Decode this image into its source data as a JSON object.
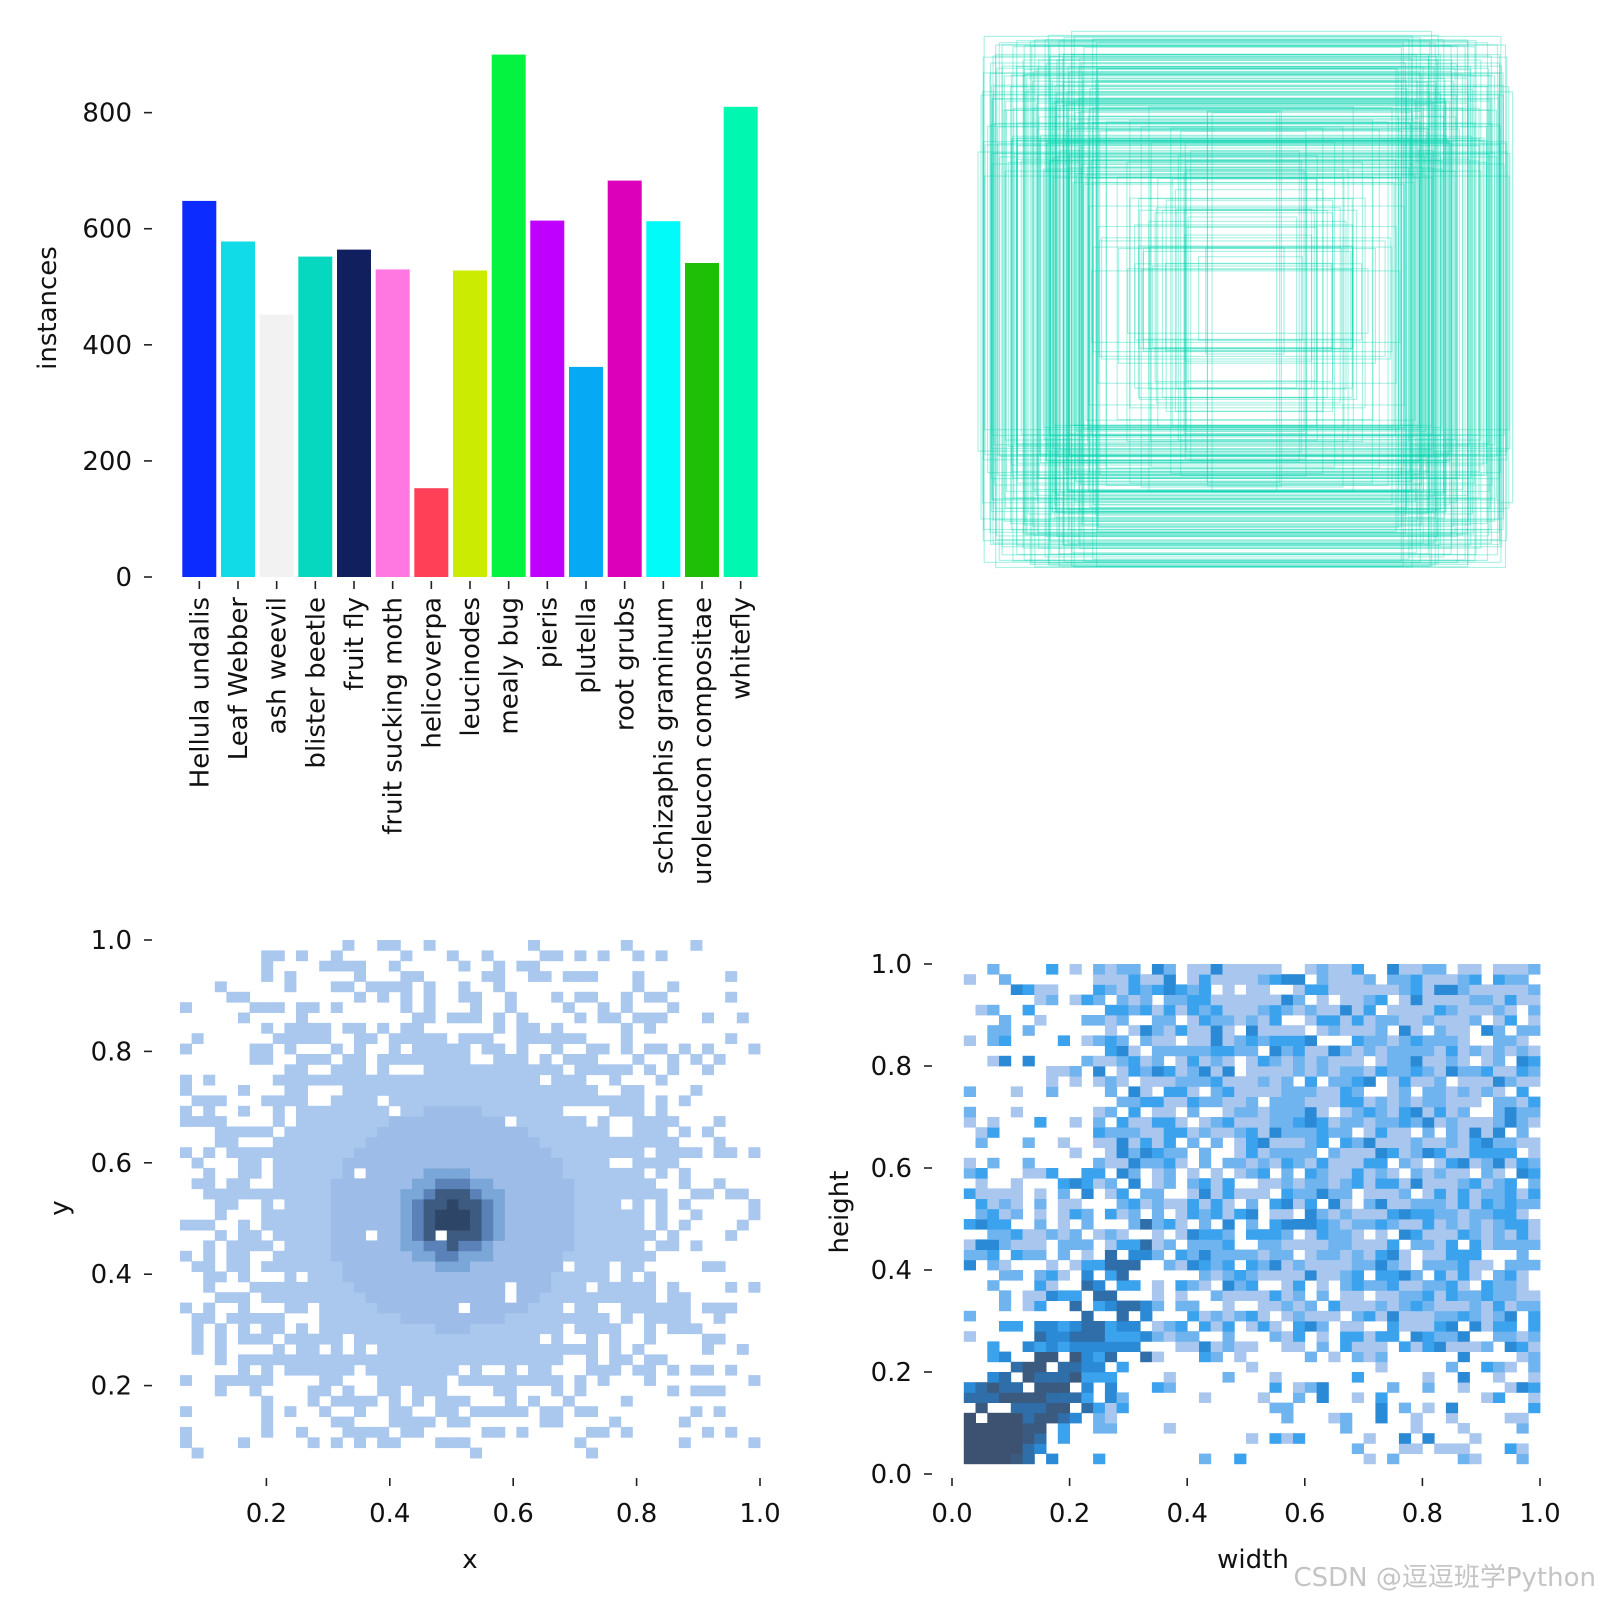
{
  "chart_data": [
    {
      "id": "instances-bar",
      "type": "bar",
      "ylabel": "instances",
      "xlabel": "",
      "ylim": [
        0,
        920
      ],
      "yticks": [
        "0",
        "200",
        "400",
        "600",
        "800"
      ],
      "categories": [
        "Hellula undalis",
        "Leaf Webber",
        "ash weevil",
        "blister beetle",
        "fruit fly",
        "fruit sucking moth",
        "helicoverpa",
        "leucinodes",
        "mealy bug",
        "pieris",
        "plutella",
        "root grubs",
        "schizaphis graminum",
        "uroleucon compositae",
        "whitefly"
      ],
      "values": [
        648,
        578,
        452,
        552,
        564,
        530,
        153,
        528,
        900,
        614,
        362,
        683,
        613,
        541,
        810
      ],
      "colors": [
        "#0b2bff",
        "#11dbe6",
        "#f2f2f2",
        "#06d7bf",
        "#121f5e",
        "#ff78e1",
        "#ff4056",
        "#cbeb02",
        "#04f240",
        "#c000ff",
        "#05a9f4",
        "#dc00bb",
        "#00fbf8",
        "#20bf07",
        "#00f7b0"
      ]
    },
    {
      "id": "bbox-overlay",
      "type": "box-overlay",
      "color": "#00d4ae",
      "note": "overlaid bounding boxes (width, height) centered at 0.5, 0.5"
    },
    {
      "id": "xy-histogram",
      "type": "heatmap",
      "xlabel": "x",
      "ylabel": "y",
      "xlim": [
        0.06,
        1.0
      ],
      "ylim": [
        0.07,
        1.0
      ],
      "xticks": [
        "0.2",
        "0.4",
        "0.6",
        "0.8",
        "1.0"
      ],
      "yticks": [
        "0.2",
        "0.4",
        "0.6",
        "0.8",
        "1.0"
      ],
      "center": [
        0.5,
        0.5
      ],
      "palette": [
        "#aac8ee",
        "#9dbde8",
        "#7aa6d8",
        "#5b82b8",
        "#3d5a80",
        "#2d4566"
      ]
    },
    {
      "id": "wh-histogram",
      "type": "heatmap",
      "xlabel": "width",
      "ylabel": "height",
      "xlim": [
        0.0,
        1.0
      ],
      "ylim": [
        0.0,
        1.0
      ],
      "xticks": [
        "0.0",
        "0.2",
        "0.4",
        "0.6",
        "0.8",
        "1.0"
      ],
      "yticks": [
        "0.0",
        "0.2",
        "0.4",
        "0.6",
        "0.8",
        "1.0"
      ],
      "palette": [
        "#a9c7ee",
        "#6fb4ee",
        "#3ba2ee",
        "#2b8ad6",
        "#2f6ea8",
        "#3a5a80",
        "#3d5270"
      ]
    }
  ],
  "watermark": "CSDN @逗逗班学Python"
}
